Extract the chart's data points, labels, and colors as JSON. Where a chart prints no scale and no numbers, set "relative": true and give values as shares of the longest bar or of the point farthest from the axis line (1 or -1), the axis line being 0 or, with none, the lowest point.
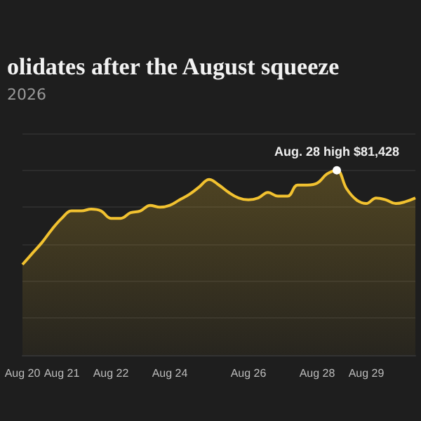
{
  "chart_data": {
    "type": "area",
    "title": "olidates after the August squeeze",
    "subtitle": "2026",
    "categories": [
      "Aug 20",
      null,
      null,
      null,
      "Aug 21",
      null,
      null,
      null,
      null,
      "Aug 22",
      null,
      null,
      null,
      null,
      null,
      "Aug 24",
      null,
      null,
      null,
      null,
      null,
      null,
      null,
      "Aug 26",
      null,
      null,
      null,
      null,
      null,
      null,
      "Aug 28",
      null,
      null,
      null,
      null,
      "Aug 29",
      null,
      null,
      null,
      null,
      null
    ],
    "series": [
      {
        "color": "#f2c230",
        "values": [
          0.49,
          0.55,
          0.61,
          0.68,
          0.74,
          0.78,
          0.78,
          0.79,
          0.78,
          0.74,
          0.74,
          0.77,
          0.78,
          0.81,
          0.8,
          0.81,
          0.84,
          0.87,
          0.91,
          0.95,
          0.92,
          0.88,
          0.85,
          0.84,
          0.85,
          0.88,
          0.86,
          0.86,
          0.92,
          0.92,
          0.93,
          0.98,
          1,
          0.9,
          0.84,
          0.82,
          0.85,
          0.84,
          0.82,
          0.83,
          0.85
        ]
      }
    ],
    "relative": true,
    "grid": "y",
    "marker": "none",
    "annotations": [
      {
        "text": "Aug. 28 high $81,428",
        "y": 1
      }
    ]
  }
}
